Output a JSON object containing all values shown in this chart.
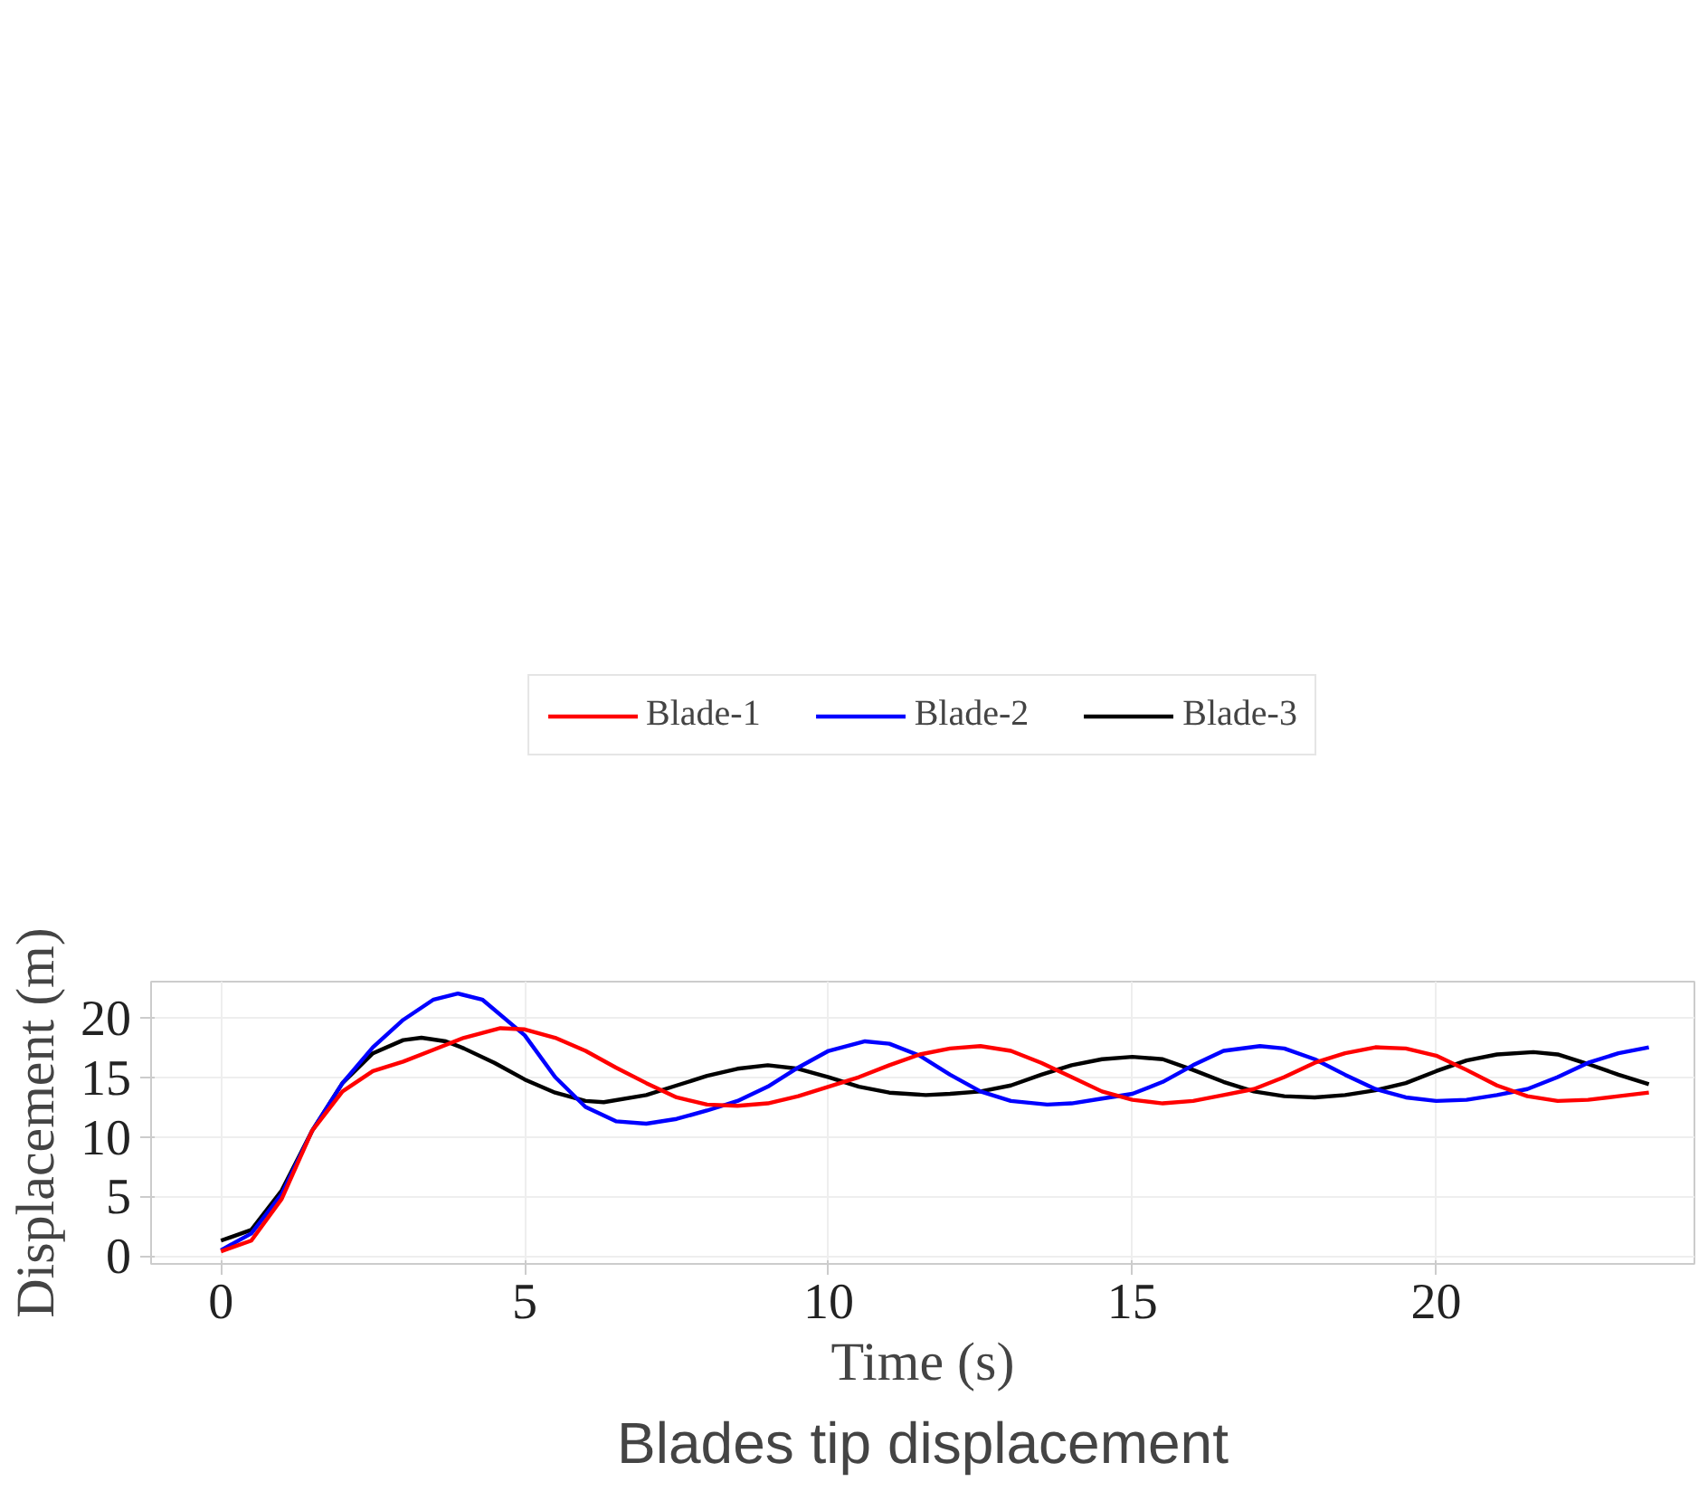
{
  "chart_data": {
    "type": "line",
    "title": "Blades tip displacement",
    "xlabel": "Time (s)",
    "ylabel": "Displacement (m)",
    "xlim": [
      -1.15,
      24.25
    ],
    "ylim": [
      -0.65,
      23.0
    ],
    "xticks": [
      0,
      5,
      10,
      15,
      20
    ],
    "yticks": [
      0,
      5,
      10,
      15,
      20
    ],
    "grid": true,
    "legend": "top",
    "series": [
      {
        "name": "Blade-1",
        "color": "#ff0000",
        "x": [
          0,
          0.5,
          1,
          1.5,
          2,
          2.5,
          3,
          3.5,
          4,
          4.6,
          5,
          5.5,
          6,
          6.5,
          7,
          7.5,
          8,
          8.5,
          9,
          9.5,
          10,
          10.5,
          11,
          11.5,
          12,
          12.5,
          13,
          13.5,
          14,
          14.5,
          15,
          15.5,
          16,
          16.5,
          17,
          17.5,
          18,
          18.5,
          19,
          19.5,
          20,
          20.5,
          21,
          21.5,
          22,
          22.5,
          23,
          23.5
        ],
        "values": [
          0.4,
          1.3,
          4.8,
          10.5,
          13.8,
          15.5,
          16.3,
          17.3,
          18.3,
          19.1,
          19.0,
          18.3,
          17.2,
          15.8,
          14.5,
          13.3,
          12.7,
          12.6,
          12.8,
          13.4,
          14.2,
          15.0,
          16,
          16.9,
          17.4,
          17.6,
          17.2,
          16.2,
          15,
          13.8,
          13.1,
          12.8,
          13.0,
          13.5,
          14.0,
          15,
          16.2,
          17,
          17.5,
          17.4,
          16.8,
          15.6,
          14.3,
          13.4,
          13.0,
          13.1,
          13.4,
          13.7
        ]
      },
      {
        "name": "Blade-2",
        "color": "#0000ff",
        "x": [
          0,
          0.5,
          1,
          1.5,
          2,
          2.5,
          3,
          3.5,
          3.9,
          4.3,
          5,
          5.5,
          6,
          6.5,
          7,
          7.5,
          8,
          8.5,
          9,
          9.5,
          10,
          10.6,
          11,
          11.5,
          12,
          12.5,
          13,
          13.6,
          14,
          14.5,
          15,
          15.5,
          16,
          16.5,
          17.1,
          17.5,
          18,
          18.5,
          19,
          19.5,
          20,
          20.5,
          21,
          21.5,
          22,
          22.5,
          23,
          23.5
        ],
        "values": [
          0.5,
          1.9,
          5.2,
          10.5,
          14.5,
          17.5,
          19.8,
          21.5,
          22.0,
          21.5,
          18.5,
          15,
          12.5,
          11.3,
          11.1,
          11.5,
          12.2,
          13,
          14.2,
          15.8,
          17.2,
          18.0,
          17.8,
          16.8,
          15.2,
          13.8,
          13,
          12.7,
          12.8,
          13.2,
          13.6,
          14.6,
          16,
          17.2,
          17.6,
          17.4,
          16.5,
          15.2,
          14,
          13.3,
          13,
          13.1,
          13.5,
          14,
          15,
          16.2,
          17,
          17.5
        ]
      },
      {
        "name": "Blade-3",
        "color": "#000000",
        "x": [
          0,
          0.5,
          1,
          1.5,
          2,
          2.5,
          3,
          3.3,
          3.7,
          4,
          4.5,
          5,
          5.5,
          6,
          6.3,
          7,
          7.5,
          8,
          8.5,
          9,
          9.5,
          10,
          10.5,
          11,
          11.6,
          12,
          12.5,
          13,
          13.5,
          14,
          14.5,
          15,
          15.5,
          16,
          16.5,
          17,
          17.5,
          18,
          18.5,
          19,
          19.5,
          20,
          20.5,
          21,
          21.6,
          22,
          22.5,
          23,
          23.5
        ],
        "values": [
          1.3,
          2.2,
          5.5,
          10.5,
          14.5,
          17,
          18.1,
          18.3,
          18,
          17.4,
          16.2,
          14.8,
          13.7,
          13.0,
          12.9,
          13.5,
          14.3,
          15.1,
          15.7,
          16.0,
          15.7,
          15.0,
          14.2,
          13.7,
          13.5,
          13.6,
          13.8,
          14.3,
          15.2,
          16,
          16.5,
          16.7,
          16.5,
          15.6,
          14.6,
          13.8,
          13.4,
          13.3,
          13.5,
          13.9,
          14.5,
          15.5,
          16.4,
          16.9,
          17.1,
          16.9,
          16.1,
          15.2,
          14.4
        ]
      }
    ]
  }
}
